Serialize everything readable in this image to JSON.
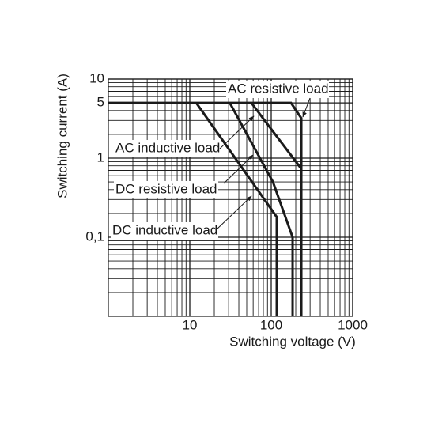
{
  "chart_data": {
    "type": "line",
    "xlabel": "Switching voltage (V)",
    "ylabel": "Switching current (A)",
    "xscale": "log",
    "yscale": "log",
    "grid": true,
    "xlim": [
      1,
      1000
    ],
    "ylim": [
      0.01,
      10
    ],
    "xticks": [
      10,
      100,
      1000
    ],
    "yticks": [
      {
        "value": 0.1,
        "label": "0,1"
      },
      1,
      5,
      10
    ],
    "series": [
      {
        "name": "AC resistive load",
        "color": "#1a1a1a",
        "x": [
          1,
          175,
          234,
          234
        ],
        "values": [
          5,
          5,
          3.2,
          0.01
        ]
      },
      {
        "name": "AC inductive load",
        "color": "#1a1a1a",
        "x": [
          57,
          228
        ],
        "values": [
          5,
          0.76
        ]
      },
      {
        "name": "DC resistive load",
        "color": "#1a1a1a",
        "x": [
          31,
          105,
          183,
          183
        ],
        "values": [
          5,
          0.5,
          0.1,
          0.01
        ]
      },
      {
        "name": "DC inductive load",
        "color": "#1a1a1a",
        "x": [
          12,
          117,
          117
        ],
        "values": [
          5,
          0.18,
          0.01
        ]
      }
    ]
  }
}
